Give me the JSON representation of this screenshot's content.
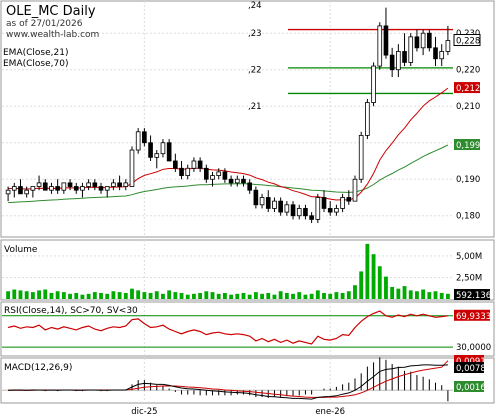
{
  "header": {
    "title": "OLE_MC Daily",
    "date": "as of 27/01/2026",
    "site": "www.wealth-lab.com",
    "indicator1": "EMA(Close,21)",
    "indicator2": "EMA(Close,70)"
  },
  "colors": {
    "up": "#ffffff",
    "down": "#000000",
    "ema21": "#cc0000",
    "ema70": "#2e8b2e",
    "volume": "#00aa00",
    "rsi": "#cc0000",
    "macd": "#000000",
    "macd_signal": "#cc0000",
    "hline_red": "#cc0000",
    "hline_green": "#008800",
    "grid": "#dddddd"
  },
  "chart_data": [
    {
      "id": "price",
      "type": "candlestick",
      "ylim": [
        0.175,
        0.238
      ],
      "price_ticks": [
        "0,230",
        "0,220",
        "0,210",
        "0,200",
        "0,190",
        "0,180"
      ],
      "fib_labels": [
        ",24",
        ",23",
        ",22",
        ",21"
      ],
      "fib_levels": [
        0.24,
        0.23,
        0.22,
        0.21
      ],
      "hlines": [
        {
          "value": 0.231,
          "color": "red"
        },
        {
          "value": 0.2205,
          "color": "green"
        },
        {
          "value": 0.2135,
          "color": "green"
        }
      ],
      "last_labels": [
        {
          "text": "0,228",
          "kind": "close"
        },
        {
          "text": "0,212",
          "kind": "ema21"
        },
        {
          "text": "0,199",
          "kind": "ema70"
        }
      ],
      "candles": [
        [
          0.186,
          0.188,
          0.184,
          0.187
        ],
        [
          0.187,
          0.189,
          0.185,
          0.188
        ],
        [
          0.188,
          0.19,
          0.186,
          0.186
        ],
        [
          0.186,
          0.188,
          0.185,
          0.187
        ],
        [
          0.187,
          0.188,
          0.185,
          0.188
        ],
        [
          0.188,
          0.191,
          0.187,
          0.189
        ],
        [
          0.189,
          0.19,
          0.187,
          0.187
        ],
        [
          0.187,
          0.189,
          0.186,
          0.188
        ],
        [
          0.188,
          0.19,
          0.186,
          0.187
        ],
        [
          0.187,
          0.189,
          0.186,
          0.189
        ],
        [
          0.189,
          0.19,
          0.187,
          0.188
        ],
        [
          0.188,
          0.189,
          0.186,
          0.187
        ],
        [
          0.187,
          0.189,
          0.185,
          0.188
        ],
        [
          0.188,
          0.19,
          0.187,
          0.189
        ],
        [
          0.189,
          0.19,
          0.187,
          0.188
        ],
        [
          0.188,
          0.189,
          0.186,
          0.187
        ],
        [
          0.187,
          0.188,
          0.185,
          0.188
        ],
        [
          0.188,
          0.19,
          0.187,
          0.189
        ],
        [
          0.189,
          0.191,
          0.187,
          0.188
        ],
        [
          0.188,
          0.19,
          0.187,
          0.189
        ],
        [
          0.188,
          0.199,
          0.188,
          0.198
        ],
        [
          0.198,
          0.204,
          0.197,
          0.203
        ],
        [
          0.203,
          0.204,
          0.199,
          0.2
        ],
        [
          0.2,
          0.202,
          0.195,
          0.196
        ],
        [
          0.196,
          0.198,
          0.193,
          0.197
        ],
        [
          0.197,
          0.201,
          0.196,
          0.2
        ],
        [
          0.2,
          0.201,
          0.195,
          0.195
        ],
        [
          0.195,
          0.197,
          0.192,
          0.193
        ],
        [
          0.193,
          0.195,
          0.19,
          0.191
        ],
        [
          0.191,
          0.194,
          0.19,
          0.193
        ],
        [
          0.193,
          0.196,
          0.192,
          0.195
        ],
        [
          0.195,
          0.196,
          0.192,
          0.193
        ],
        [
          0.193,
          0.194,
          0.189,
          0.19
        ],
        [
          0.19,
          0.192,
          0.188,
          0.191
        ],
        [
          0.191,
          0.193,
          0.19,
          0.192
        ],
        [
          0.192,
          0.193,
          0.189,
          0.19
        ],
        [
          0.19,
          0.191,
          0.188,
          0.189
        ],
        [
          0.189,
          0.191,
          0.188,
          0.19
        ],
        [
          0.19,
          0.191,
          0.188,
          0.189
        ],
        [
          0.189,
          0.19,
          0.186,
          0.187
        ],
        [
          0.187,
          0.188,
          0.182,
          0.183
        ],
        [
          0.183,
          0.186,
          0.182,
          0.185
        ],
        [
          0.185,
          0.187,
          0.181,
          0.182
        ],
        [
          0.182,
          0.185,
          0.181,
          0.184
        ],
        [
          0.184,
          0.185,
          0.18,
          0.181
        ],
        [
          0.181,
          0.184,
          0.18,
          0.183
        ],
        [
          0.183,
          0.184,
          0.179,
          0.18
        ],
        [
          0.18,
          0.183,
          0.179,
          0.182
        ],
        [
          0.182,
          0.183,
          0.179,
          0.18
        ],
        [
          0.18,
          0.181,
          0.178,
          0.179
        ],
        [
          0.179,
          0.186,
          0.178,
          0.185
        ],
        [
          0.185,
          0.187,
          0.181,
          0.182
        ],
        [
          0.182,
          0.184,
          0.18,
          0.181
        ],
        [
          0.181,
          0.183,
          0.18,
          0.182
        ],
        [
          0.182,
          0.186,
          0.181,
          0.185
        ],
        [
          0.185,
          0.187,
          0.183,
          0.184
        ],
        [
          0.184,
          0.191,
          0.184,
          0.19
        ],
        [
          0.19,
          0.203,
          0.189,
          0.202
        ],
        [
          0.202,
          0.212,
          0.201,
          0.211
        ],
        [
          0.211,
          0.222,
          0.21,
          0.221
        ],
        [
          0.221,
          0.233,
          0.22,
          0.232
        ],
        [
          0.232,
          0.237,
          0.223,
          0.224
        ],
        [
          0.224,
          0.226,
          0.218,
          0.22
        ],
        [
          0.22,
          0.227,
          0.218,
          0.225
        ],
        [
          0.225,
          0.23,
          0.221,
          0.222
        ],
        [
          0.222,
          0.23,
          0.221,
          0.229
        ],
        [
          0.229,
          0.231,
          0.225,
          0.226
        ],
        [
          0.226,
          0.231,
          0.224,
          0.23
        ],
        [
          0.23,
          0.231,
          0.225,
          0.226
        ],
        [
          0.226,
          0.229,
          0.221,
          0.223
        ],
        [
          0.223,
          0.227,
          0.221,
          0.225
        ],
        [
          0.225,
          0.232,
          0.224,
          0.228
        ]
      ]
    },
    {
      "id": "volume",
      "type": "bar",
      "title": "Volume",
      "ticks": [
        "5,00M",
        "2,50M"
      ],
      "ylim": [
        0,
        6.5
      ],
      "last_label": "592.136",
      "values": [
        0.9,
        1.1,
        1.0,
        0.9,
        0.8,
        1.0,
        1.1,
        0.7,
        0.9,
        0.8,
        0.6,
        0.7,
        0.5,
        0.6,
        0.8,
        0.7,
        0.6,
        0.9,
        0.8,
        0.7,
        1.2,
        1.0,
        0.8,
        0.7,
        0.9,
        0.6,
        1.0,
        0.8,
        0.7,
        0.5,
        0.6,
        0.7,
        0.9,
        0.8,
        0.6,
        0.7,
        0.5,
        0.6,
        0.7,
        0.5,
        0.8,
        0.6,
        0.7,
        0.5,
        0.9,
        0.7,
        0.6,
        0.8,
        0.5,
        0.6,
        1.0,
        0.7,
        0.6,
        0.8,
        0.7,
        0.9,
        1.6,
        3.2,
        6.4,
        5.2,
        3.8,
        2.6,
        1.4,
        1.2,
        1.5,
        1.0,
        0.9,
        1.1,
        0.8,
        0.9,
        0.7,
        0.6
      ]
    },
    {
      "id": "rsi",
      "type": "line",
      "title": "RSI(Close,14), SC>70, SV<30",
      "ylim": [
        20,
        85
      ],
      "ticks": [
        "30,0000"
      ],
      "levels": [
        70,
        30
      ],
      "last_label": "69,9333",
      "values": [
        55,
        57,
        54,
        56,
        55,
        58,
        52,
        55,
        53,
        56,
        54,
        52,
        55,
        57,
        53,
        51,
        54,
        56,
        55,
        57,
        65,
        66,
        60,
        55,
        56,
        58,
        53,
        50,
        47,
        50,
        52,
        50,
        46,
        48,
        49,
        47,
        46,
        47,
        46,
        44,
        38,
        41,
        37,
        40,
        36,
        39,
        35,
        38,
        36,
        34,
        44,
        40,
        39,
        41,
        46,
        45,
        55,
        63,
        69,
        73,
        76,
        70,
        68,
        71,
        69,
        72,
        70,
        72,
        70,
        68,
        69,
        70
      ]
    },
    {
      "id": "macd",
      "type": "line+histogram",
      "title": "MACD(12,26,9)",
      "ylim": [
        -0.0036,
        0.0093
      ],
      "last_labels": [
        "0,0091",
        "0,0078",
        "0,0016"
      ],
      "macd": [
        0.0,
        0.0001,
        0.0001,
        0.0,
        0.0001,
        0.0001,
        0.0,
        0.0001,
        0.0,
        0.0001,
        0.0001,
        0.0,
        0.0,
        0.0001,
        0.0001,
        0.0,
        0.0,
        0.0001,
        0.0001,
        0.0001,
        0.001,
        0.0018,
        0.0021,
        0.002,
        0.0018,
        0.0018,
        0.0015,
        0.0011,
        0.0007,
        0.0005,
        0.0004,
        0.0002,
        0.0,
        -0.0002,
        -0.0003,
        -0.0005,
        -0.0006,
        -0.0007,
        -0.0008,
        -0.001,
        -0.0014,
        -0.0016,
        -0.0019,
        -0.002,
        -0.0022,
        -0.0023,
        -0.0025,
        -0.0025,
        -0.0026,
        -0.0027,
        -0.0022,
        -0.002,
        -0.0019,
        -0.0017,
        -0.0012,
        -0.0008,
        0.0,
        0.0012,
        0.0028,
        0.0042,
        0.0058,
        0.0064,
        0.0066,
        0.007,
        0.0071,
        0.0075,
        0.0076,
        0.0078,
        0.0078,
        0.0077,
        0.0077,
        0.0078
      ],
      "signal": [
        0.0,
        0.0,
        0.0,
        0.0,
        0.0,
        0.0001,
        0.0001,
        0.0001,
        0.0001,
        0.0001,
        0.0001,
        0.0001,
        0.0001,
        0.0001,
        0.0001,
        0.0001,
        0.0001,
        0.0001,
        0.0001,
        0.0001,
        0.0003,
        0.0006,
        0.0009,
        0.0011,
        0.0012,
        0.0013,
        0.0013,
        0.0013,
        0.0012,
        0.001,
        0.0009,
        0.0008,
        0.0006,
        0.0004,
        0.0003,
        0.0001,
        0.0,
        -0.0002,
        -0.0003,
        -0.0004,
        -0.0006,
        -0.0008,
        -0.001,
        -0.0012,
        -0.0014,
        -0.0016,
        -0.0018,
        -0.0019,
        -0.0021,
        -0.0022,
        -0.0022,
        -0.0022,
        -0.0021,
        -0.0021,
        -0.0019,
        -0.0017,
        -0.0014,
        -0.0008,
        0.0,
        0.0009,
        0.0019,
        0.0028,
        0.0035,
        0.0042,
        0.0048,
        0.0053,
        0.0058,
        0.0062,
        0.0065,
        0.0068,
        0.0071,
        0.0091
      ]
    }
  ],
  "x_axis": {
    "labels": [
      "dic-25",
      "ene-26"
    ],
    "label_index": [
      22,
      52
    ]
  }
}
